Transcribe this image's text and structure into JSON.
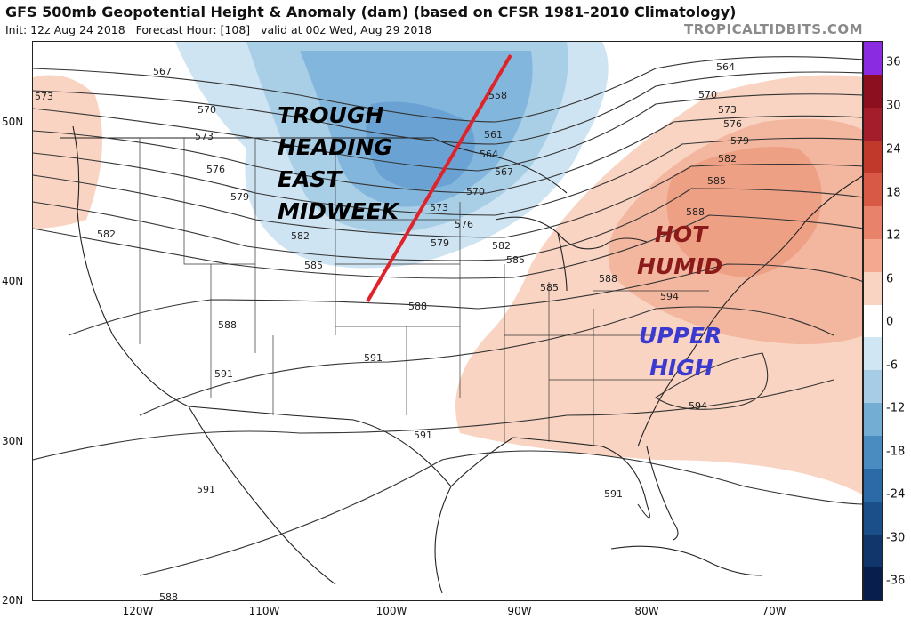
{
  "header": {
    "title": "GFS 500mb Geopotential Height & Anomaly (dam) (based on CFSR 1981-2010 Climatology)",
    "init": "Init: 12z Aug 24 2018",
    "forecast_hour": "Forecast Hour: [108]",
    "valid": "valid at 00z Wed, Aug 29 2018",
    "brand": "TROPICALTIDBITS.COM"
  },
  "axes": {
    "latitude_labels": [
      "50N",
      "40N",
      "30N",
      "20N"
    ],
    "longitude_labels": [
      "120W",
      "110W",
      "100W",
      "90W",
      "80W",
      "70W"
    ]
  },
  "colorbar": {
    "labels": [
      "36",
      "30",
      "24",
      "18",
      "12",
      "6",
      "0",
      "-6",
      "-12",
      "-18",
      "-24",
      "-30",
      "-36"
    ],
    "colors": [
      "#8a2be2",
      "#8b0f1e",
      "#a31d2a",
      "#c0392b",
      "#d85a46",
      "#e8826a",
      "#f3a88f",
      "#fad4c2",
      "#ffffff",
      "#d0e6f2",
      "#a7cde6",
      "#74add4",
      "#4a8cc0",
      "#2b6aa6",
      "#1b4f8a",
      "#10366b",
      "#081f4d"
    ]
  },
  "contour_labels": [
    "567",
    "570",
    "573",
    "573",
    "576",
    "579",
    "582",
    "582",
    "585",
    "585",
    "588",
    "588",
    "588",
    "591",
    "591",
    "591",
    "591",
    "591",
    "594",
    "594",
    "564",
    "570",
    "573",
    "576",
    "579",
    "582",
    "585",
    "588",
    "558",
    "561",
    "564",
    "567",
    "570",
    "573",
    "576",
    "579",
    "582",
    "585",
    "588"
  ],
  "annotations": {
    "trough": [
      "TROUGH",
      "HEADING",
      "EAST",
      "MIDWEEK"
    ],
    "hot": [
      "HOT",
      "HUMID"
    ],
    "high": [
      "UPPER",
      "HIGH"
    ]
  },
  "colors": {
    "trough_text": "#000000",
    "hot_text": "#8b1a1a",
    "high_text": "#3a3ad0",
    "trough_line": "#e0232a"
  }
}
